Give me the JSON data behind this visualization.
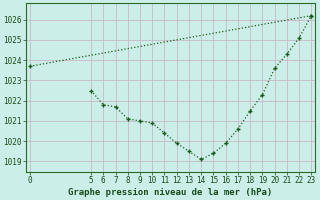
{
  "title": "Graphe pression niveau de la mer (hPa)",
  "bg_color": "#cceee8",
  "grid_color": "#c8b8c8",
  "line_color": "#1a5c1a",
  "x_ticks": [
    0,
    5,
    6,
    7,
    8,
    9,
    10,
    11,
    12,
    13,
    14,
    15,
    16,
    17,
    18,
    19,
    20,
    21,
    22,
    23
  ],
  "series1_x": [
    0,
    23
  ],
  "series1_y": [
    1023.7,
    1026.2
  ],
  "series2_x": [
    5,
    6,
    7,
    8,
    9,
    10,
    11,
    12,
    13,
    14,
    15,
    16,
    17,
    18,
    19,
    20,
    21,
    22,
    23
  ],
  "series2_y": [
    1022.5,
    1021.8,
    1021.7,
    1021.1,
    1021.0,
    1020.9,
    1020.4,
    1019.9,
    1019.5,
    1019.1,
    1019.4,
    1019.9,
    1020.6,
    1021.5,
    1022.3,
    1023.6,
    1024.3,
    1025.1,
    1026.2
  ],
  "ylim": [
    1018.5,
    1026.8
  ],
  "yticks": [
    1019,
    1020,
    1021,
    1022,
    1023,
    1024,
    1025,
    1026
  ],
  "xlim": [
    -0.3,
    23.3
  ],
  "tick_fontsize": 5.5,
  "label_fontsize": 6.5
}
